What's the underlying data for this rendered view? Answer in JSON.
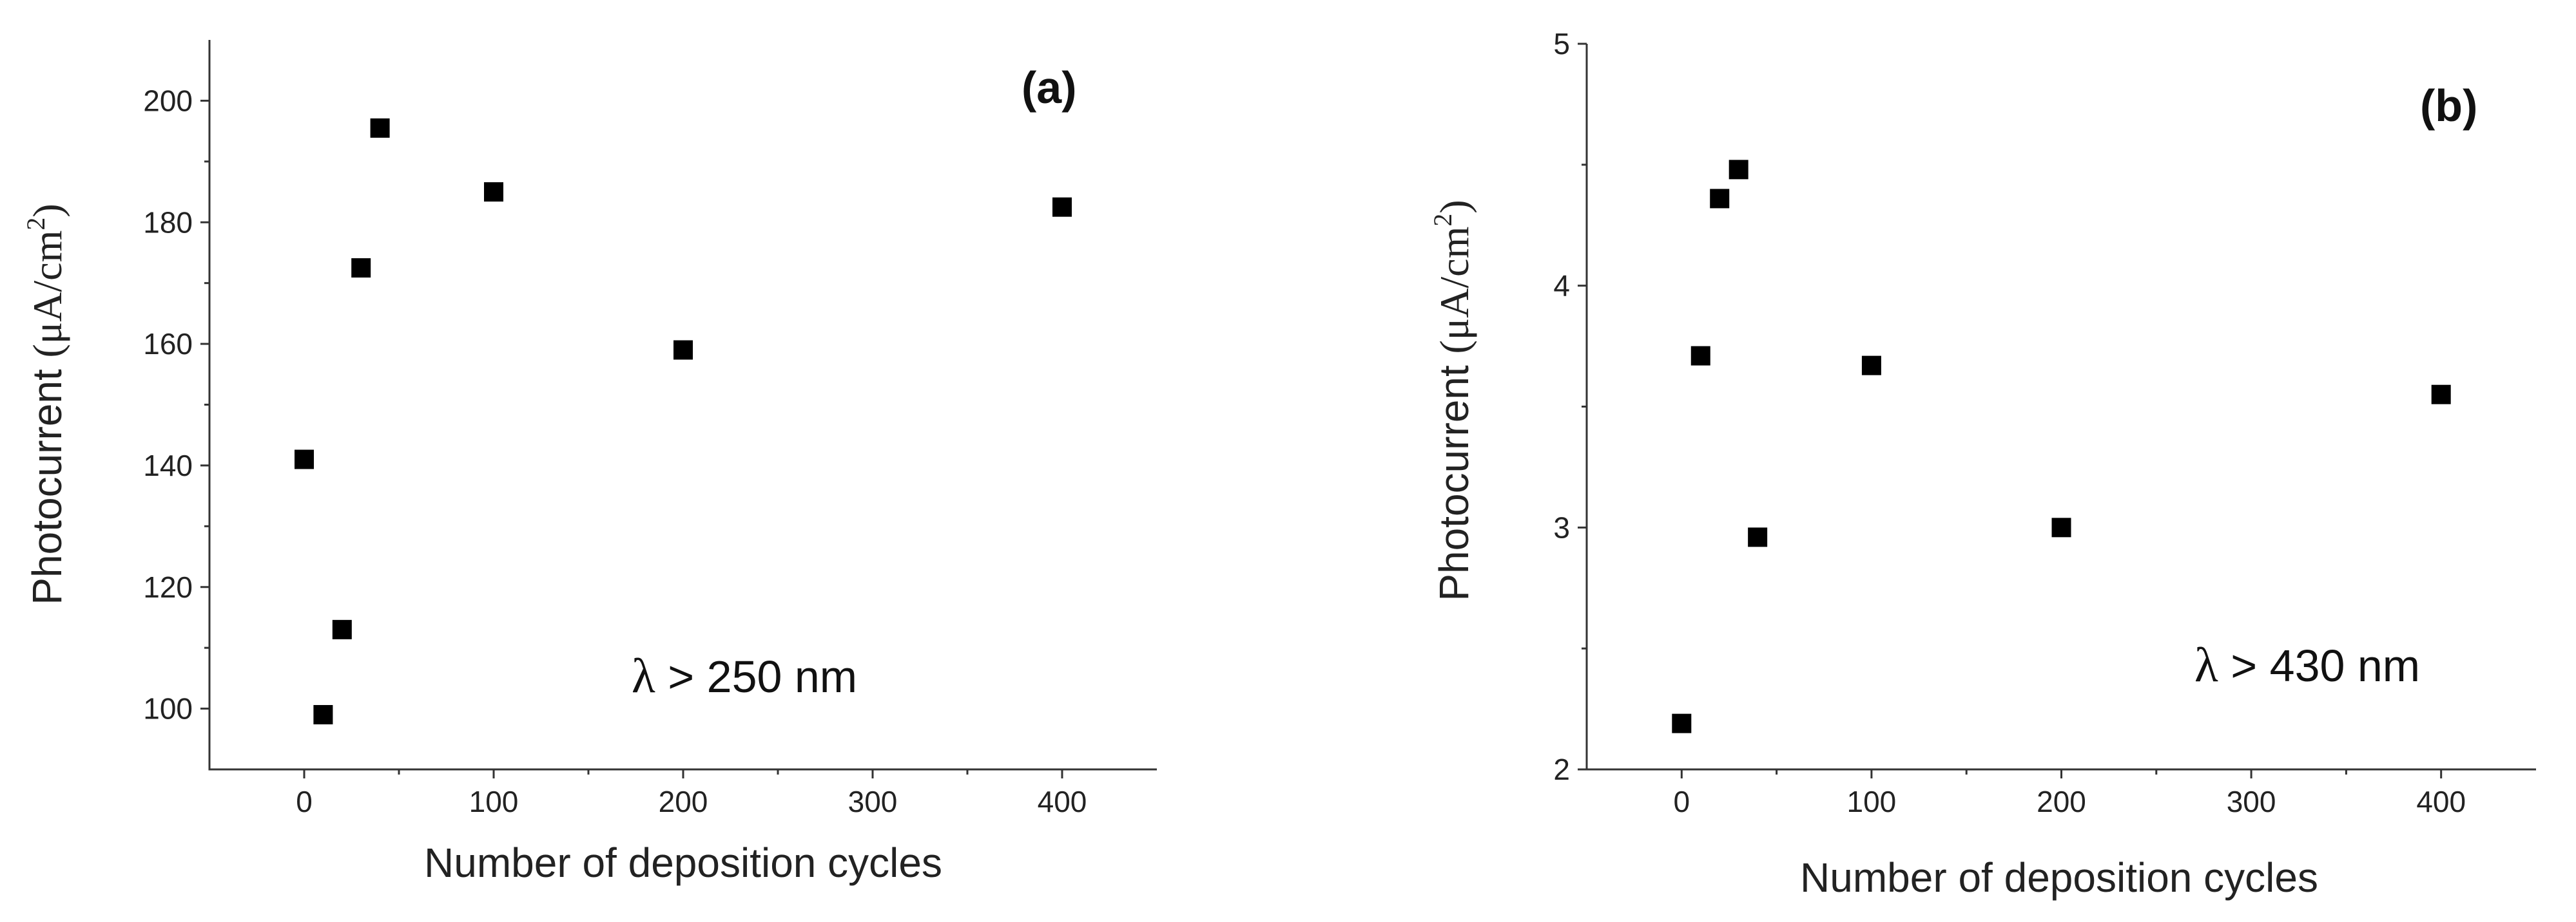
{
  "chart_data": [
    {
      "type": "scatter",
      "panel": "(a)",
      "xlabel": "Number of deposition cycles",
      "ylabel": {
        "main": "Photocurrent ",
        "unit": "(μA/cm",
        "sup": "2",
        "close": ")"
      },
      "annotation": {
        "symbol": "λ",
        "text": " > 250 nm"
      },
      "xlim": [
        -50,
        450
      ],
      "ylim": [
        90,
        210
      ],
      "x_ticks": [
        0,
        100,
        200,
        300,
        400
      ],
      "y_ticks": [
        100,
        120,
        140,
        160,
        180,
        200
      ],
      "points": [
        {
          "x": 0,
          "y": 141
        },
        {
          "x": 10,
          "y": 99
        },
        {
          "x": 20,
          "y": 113
        },
        {
          "x": 30,
          "y": 172.5
        },
        {
          "x": 40,
          "y": 195.5
        },
        {
          "x": 100,
          "y": 185
        },
        {
          "x": 200,
          "y": 159
        },
        {
          "x": 400,
          "y": 182.5
        }
      ]
    },
    {
      "type": "scatter",
      "panel": "(b)",
      "xlabel": "Number of deposition cycles",
      "ylabel": {
        "main": "Photocurrent ",
        "unit": "(μA/cm",
        "sup": "2",
        "close": ")"
      },
      "annotation": {
        "symbol": "λ",
        "text": " > 430 nm"
      },
      "xlim": [
        -50,
        450
      ],
      "ylim": [
        2,
        5
      ],
      "x_ticks": [
        0,
        100,
        200,
        300,
        400
      ],
      "y_ticks": [
        2,
        3,
        4,
        5
      ],
      "points": [
        {
          "x": 0,
          "y": 2.19
        },
        {
          "x": 10,
          "y": 3.71
        },
        {
          "x": 20,
          "y": 4.36
        },
        {
          "x": 30,
          "y": 4.48
        },
        {
          "x": 40,
          "y": 2.96
        },
        {
          "x": 100,
          "y": 3.67
        },
        {
          "x": 200,
          "y": 3.0
        },
        {
          "x": 400,
          "y": 3.55
        }
      ]
    }
  ]
}
